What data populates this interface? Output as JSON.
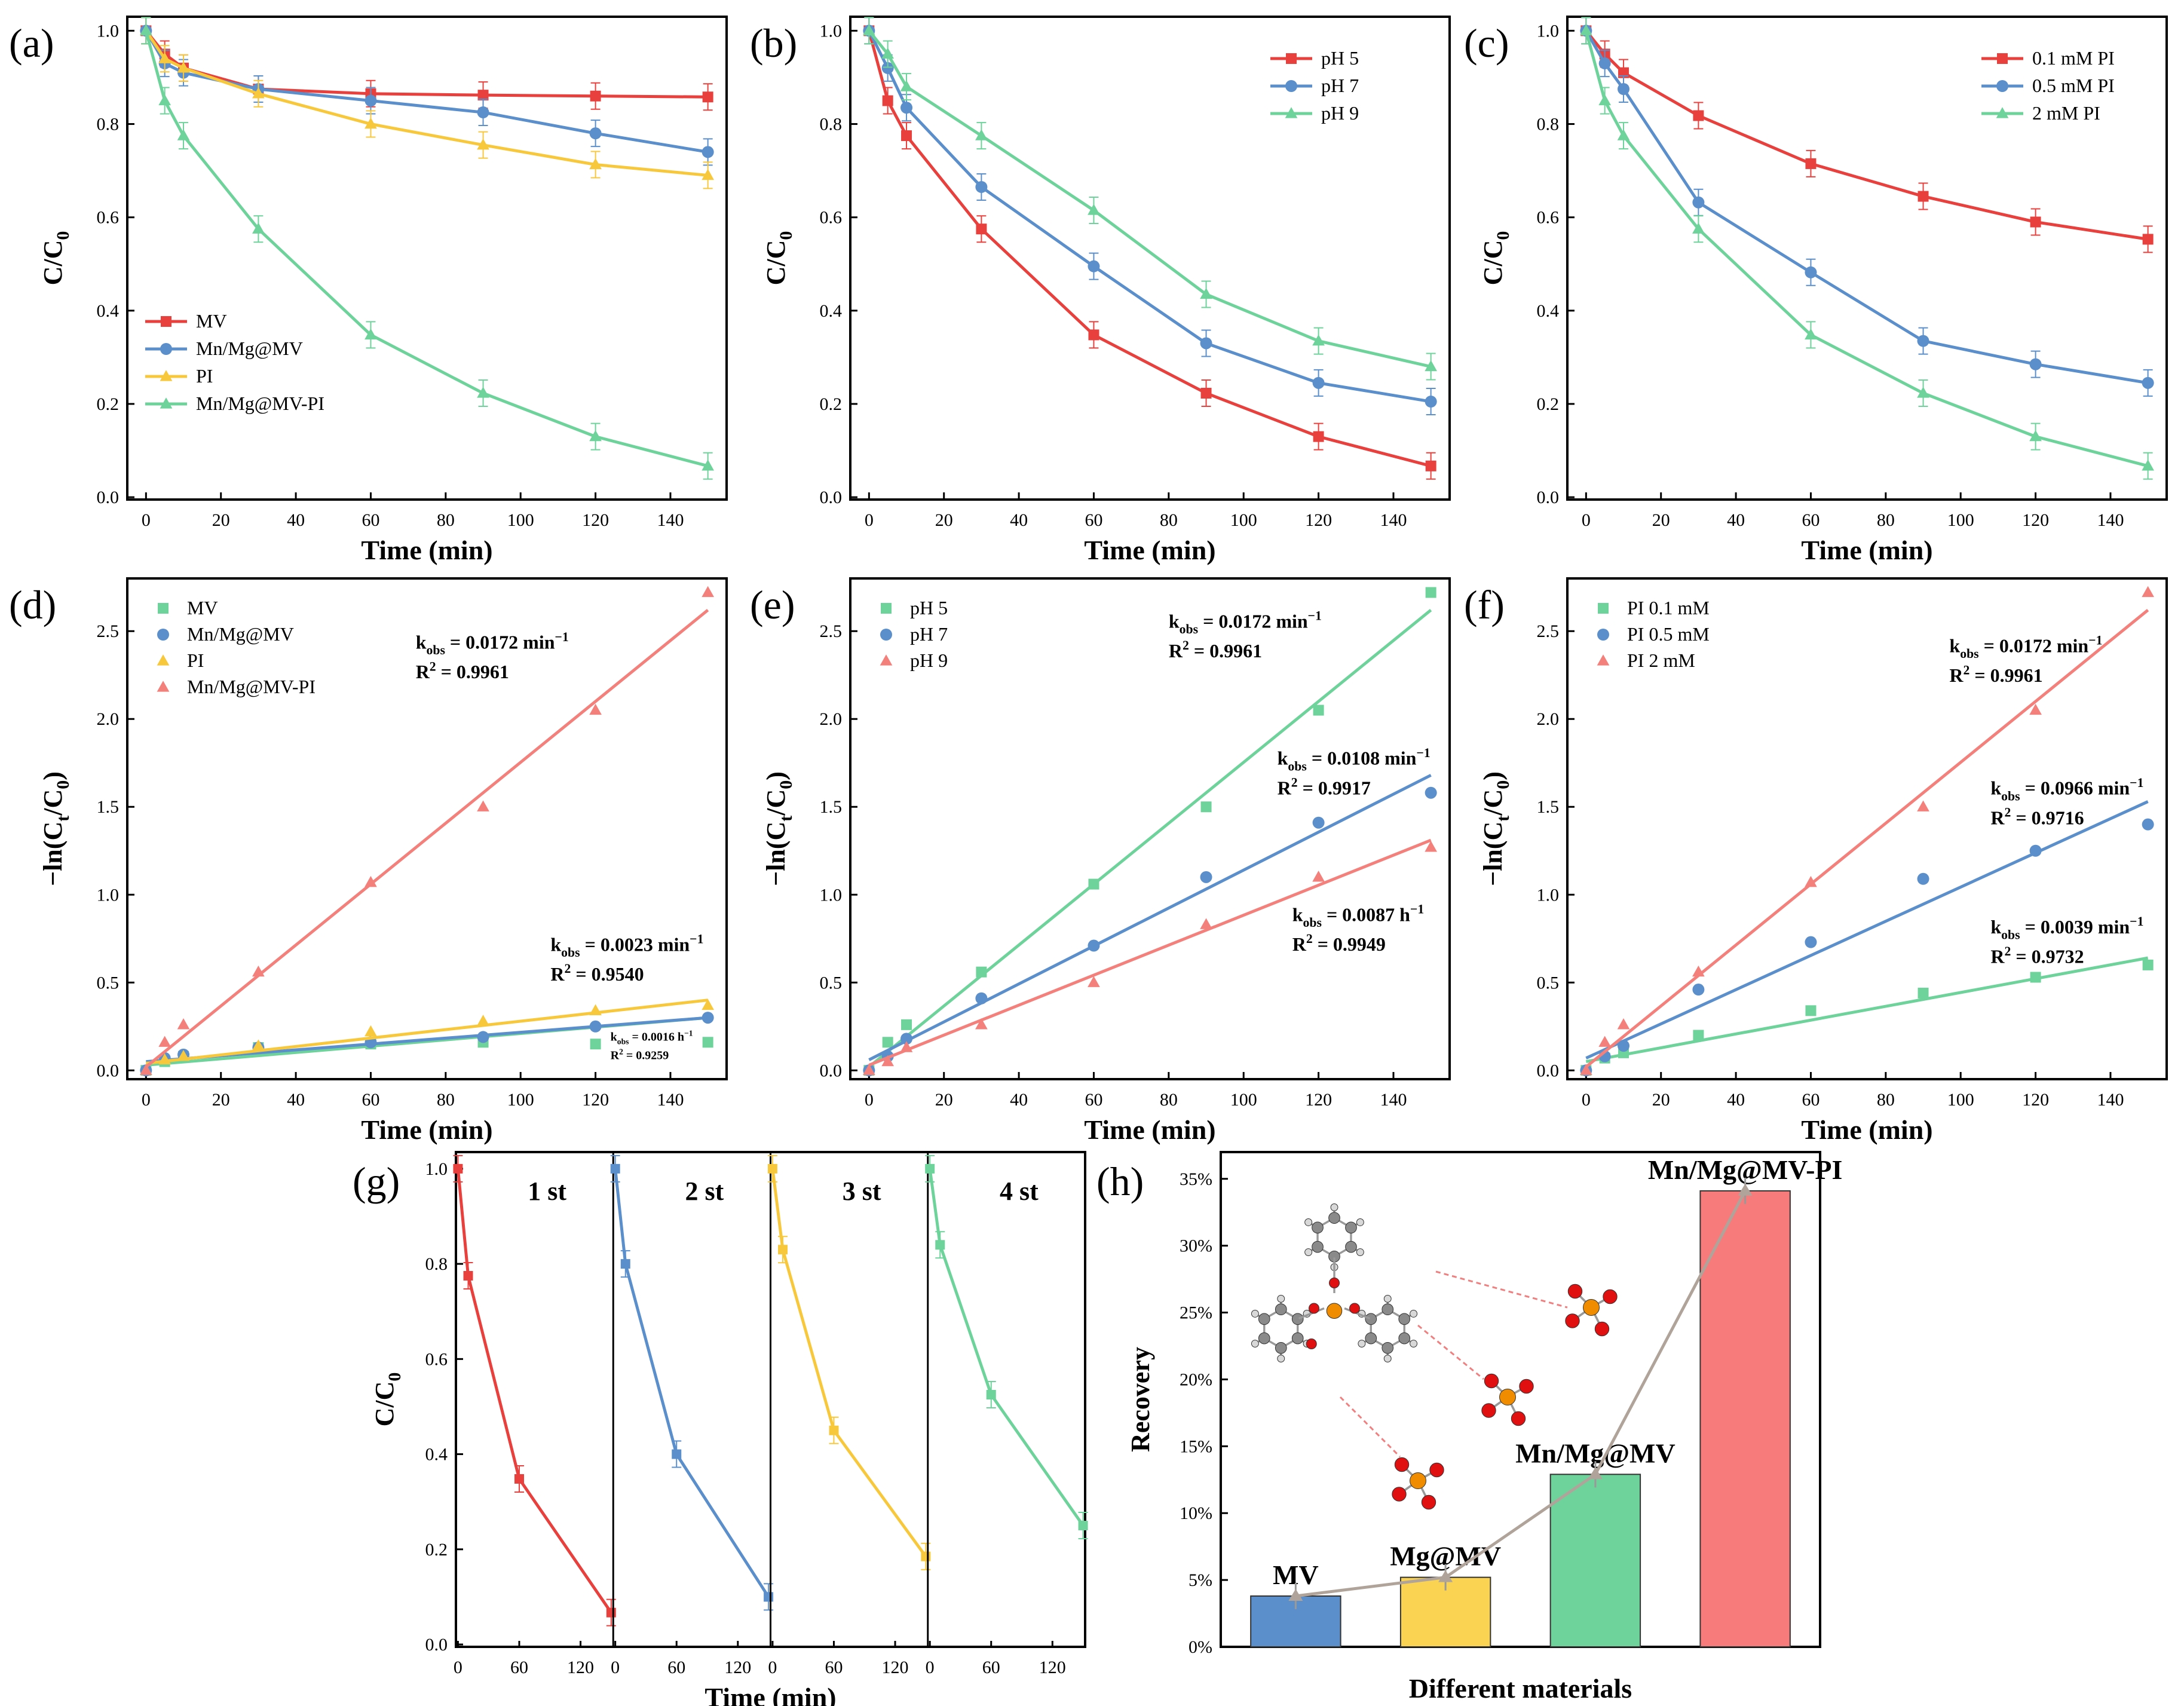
{
  "figure": {
    "panels": [
      {
        "id": "a",
        "label": "(a)",
        "type": "line",
        "xlabel": "Time (min)",
        "ylabel": "C/C",
        "ylabel_sub": "0",
        "xlim": [
          -5,
          155
        ],
        "ylim": [
          0,
          1.0
        ],
        "xticks": [
          0,
          20,
          40,
          60,
          80,
          100,
          120,
          140
        ],
        "yticks": [
          0.0,
          0.2,
          0.4,
          0.6,
          0.8,
          1.0
        ],
        "legend_pos": "bottom-left",
        "series": [
          {
            "name": "MV",
            "color": "#e8403d",
            "marker": "square",
            "x": [
              0,
              5,
              10,
              30,
              60,
              90,
              120,
              150
            ],
            "y": [
              1.0,
              0.95,
              0.92,
              0.875,
              0.865,
              0.862,
              0.86,
              0.858
            ]
          },
          {
            "name": "Mn/Mg@MV",
            "color": "#5b8fcb",
            "marker": "circle",
            "x": [
              0,
              5,
              10,
              30,
              60,
              90,
              120,
              150
            ],
            "y": [
              1.0,
              0.93,
              0.91,
              0.875,
              0.85,
              0.825,
              0.78,
              0.74
            ]
          },
          {
            "name": "PI",
            "color": "#f8c83c",
            "marker": "triangle",
            "x": [
              0,
              5,
              10,
              30,
              60,
              90,
              120,
              150
            ],
            "y": [
              1.0,
              0.94,
              0.92,
              0.865,
              0.8,
              0.755,
              0.713,
              0.69
            ]
          },
          {
            "name": "Mn/Mg@MV-PI",
            "color": "#6dd39a",
            "marker": "triangle",
            "x": [
              0,
              5,
              10,
              30,
              60,
              90,
              120,
              150
            ],
            "y": [
              1.0,
              0.85,
              0.775,
              0.575,
              0.348,
              0.223,
              0.13,
              0.067
            ]
          }
        ]
      },
      {
        "id": "b",
        "label": "(b)",
        "type": "line",
        "xlabel": "Time (min)",
        "ylabel": "C/C",
        "ylabel_sub": "0",
        "xlim": [
          -5,
          155
        ],
        "ylim": [
          0,
          1.0
        ],
        "xticks": [
          0,
          20,
          40,
          60,
          80,
          100,
          120,
          140
        ],
        "yticks": [
          0.0,
          0.2,
          0.4,
          0.6,
          0.8,
          1.0
        ],
        "legend_pos": "top-right",
        "series": [
          {
            "name": "pH 5",
            "color": "#e8403d",
            "marker": "square",
            "x": [
              0,
              5,
              10,
              30,
              60,
              90,
              120,
              150
            ],
            "y": [
              1.0,
              0.85,
              0.775,
              0.575,
              0.348,
              0.223,
              0.13,
              0.067
            ]
          },
          {
            "name": "pH 7",
            "color": "#5b8fcb",
            "marker": "circle",
            "x": [
              0,
              5,
              10,
              30,
              60,
              90,
              120,
              150
            ],
            "y": [
              1.0,
              0.92,
              0.835,
              0.665,
              0.495,
              0.33,
              0.245,
              0.205
            ]
          },
          {
            "name": "pH 9",
            "color": "#6dd39a",
            "marker": "triangle",
            "x": [
              0,
              5,
              10,
              30,
              60,
              90,
              120,
              150
            ],
            "y": [
              1.0,
              0.95,
              0.88,
              0.775,
              0.615,
              0.435,
              0.335,
              0.28
            ]
          }
        ]
      },
      {
        "id": "c",
        "label": "(c)",
        "type": "line",
        "xlabel": "Time (min)",
        "ylabel": "C/C",
        "ylabel_sub": "0",
        "xlim": [
          -5,
          155
        ],
        "ylim": [
          0,
          1.0
        ],
        "xticks": [
          0,
          20,
          40,
          60,
          80,
          100,
          120,
          140
        ],
        "yticks": [
          0.0,
          0.2,
          0.4,
          0.6,
          0.8,
          1.0
        ],
        "legend_pos": "top-right",
        "series": [
          {
            "name": "0.1 mM PI",
            "color": "#e8403d",
            "marker": "square",
            "x": [
              0,
              5,
              10,
              30,
              60,
              90,
              120,
              150
            ],
            "y": [
              1.0,
              0.95,
              0.91,
              0.818,
              0.715,
              0.645,
              0.59,
              0.553
            ]
          },
          {
            "name": "0.5 mM PI",
            "color": "#5b8fcb",
            "marker": "circle",
            "x": [
              0,
              5,
              10,
              30,
              60,
              90,
              120,
              150
            ],
            "y": [
              1.0,
              0.93,
              0.875,
              0.632,
              0.482,
              0.335,
              0.285,
              0.245
            ]
          },
          {
            "name": "2 mM PI",
            "color": "#6dd39a",
            "marker": "triangle",
            "x": [
              0,
              5,
              10,
              30,
              60,
              90,
              120,
              150
            ],
            "y": [
              1.0,
              0.85,
              0.775,
              0.575,
              0.348,
              0.223,
              0.13,
              0.067
            ]
          }
        ]
      },
      {
        "id": "d",
        "label": "(d)",
        "type": "scatter_fit",
        "xlabel": "Time (min)",
        "ylabel": "−ln(C",
        "ylabel_sub": "t",
        "ylabel_mid": "/C",
        "ylabel_sub2": "0",
        "ylabel_end": ")",
        "xlim": [
          -5,
          155
        ],
        "ylim": [
          -0.05,
          2.8
        ],
        "xticks": [
          0,
          20,
          40,
          60,
          80,
          100,
          120,
          140
        ],
        "yticks": [
          0.0,
          0.5,
          1.0,
          1.5,
          2.0,
          2.5
        ],
        "legend_pos": "top-left",
        "series": [
          {
            "name": "MV",
            "color": "#6dd39a",
            "marker": "square",
            "x": [
              0,
              5,
              10,
              30,
              60,
              90,
              120,
              150
            ],
            "y": [
              0,
              0.05,
              0.08,
              0.13,
              0.15,
              0.16,
              0.15,
              0.16
            ],
            "fit": [
              0.03,
              0.3
            ]
          },
          {
            "name": "Mn/Mg@MV",
            "color": "#5b8fcb",
            "marker": "circle",
            "x": [
              0,
              5,
              10,
              30,
              60,
              90,
              120,
              150
            ],
            "y": [
              0,
              0.07,
              0.09,
              0.13,
              0.16,
              0.19,
              0.25,
              0.3
            ],
            "fit": [
              0.05,
              0.3
            ]
          },
          {
            "name": "PI",
            "color": "#f8c83c",
            "marker": "triangle",
            "x": [
              0,
              5,
              10,
              30,
              60,
              90,
              120,
              150
            ],
            "y": [
              0,
              0.06,
              0.08,
              0.14,
              0.22,
              0.28,
              0.34,
              0.37
            ],
            "fit": [
              0.04,
              0.4
            ]
          },
          {
            "name": "Mn/Mg@MV-PI",
            "color": "#f4807c",
            "marker": "triangle",
            "x": [
              0,
              5,
              10,
              30,
              60,
              90,
              120,
              150
            ],
            "y": [
              0,
              0.16,
              0.26,
              0.56,
              1.07,
              1.5,
              2.05,
              2.72
            ],
            "fit": [
              0.02,
              2.62
            ]
          }
        ],
        "annotations": [
          {
            "k": "0.0172",
            "unit": "min",
            "r2": "0.9961",
            "x": 72,
            "y": 2.4,
            "size": "normal"
          },
          {
            "k": "0.0023",
            "unit": "min",
            "r2": "0.9540",
            "x": 108,
            "y": 0.68,
            "size": "normal"
          },
          {
            "k": "0.0016",
            "unit": "h",
            "r2": "0.9259",
            "x": 124,
            "y": 0.17,
            "size": "small"
          }
        ]
      },
      {
        "id": "e",
        "label": "(e)",
        "type": "scatter_fit",
        "xlabel": "Time (min)",
        "ylabel": "−ln(C",
        "ylabel_sub": "t",
        "ylabel_mid": "/C",
        "ylabel_sub2": "0",
        "ylabel_end": ")",
        "xlim": [
          -5,
          155
        ],
        "ylim": [
          -0.05,
          2.8
        ],
        "xticks": [
          0,
          20,
          40,
          60,
          80,
          100,
          120,
          140
        ],
        "yticks": [
          0.0,
          0.5,
          1.0,
          1.5,
          2.0,
          2.5
        ],
        "legend_pos": "top-left",
        "series": [
          {
            "name": "pH 5",
            "color": "#6dd39a",
            "marker": "square",
            "x": [
              0,
              5,
              10,
              30,
              60,
              90,
              120,
              150
            ],
            "y": [
              0,
              0.16,
              0.26,
              0.56,
              1.06,
              1.5,
              2.05,
              2.72
            ],
            "fit": [
              0.02,
              2.62
            ]
          },
          {
            "name": "pH 7",
            "color": "#5b8fcb",
            "marker": "circle",
            "x": [
              0,
              5,
              10,
              30,
              60,
              90,
              120,
              150
            ],
            "y": [
              0,
              0.08,
              0.18,
              0.41,
              0.71,
              1.1,
              1.41,
              1.58
            ],
            "fit": [
              0.06,
              1.68
            ]
          },
          {
            "name": "pH 9",
            "color": "#f4807c",
            "marker": "triangle",
            "x": [
              0,
              5,
              10,
              30,
              60,
              90,
              120,
              150
            ],
            "y": [
              0,
              0.05,
              0.13,
              0.26,
              0.5,
              0.83,
              1.1,
              1.27
            ],
            "fit": [
              0.03,
              1.31
            ]
          }
        ],
        "annotations": [
          {
            "k": "0.0172",
            "unit": "min",
            "r2": "0.9961",
            "x": 80,
            "y": 2.52,
            "size": "normal"
          },
          {
            "k": "0.0108",
            "unit": "min",
            "r2": "0.9917",
            "x": 109,
            "y": 1.74,
            "size": "normal"
          },
          {
            "k": "0.0087",
            "unit": "h",
            "r2": "0.9949",
            "x": 113,
            "y": 0.85,
            "size": "normal"
          }
        ]
      },
      {
        "id": "f",
        "label": "(f)",
        "type": "scatter_fit",
        "xlabel": "Time (min)",
        "ylabel": "−ln(C",
        "ylabel_sub": "t",
        "ylabel_mid": "/C",
        "ylabel_sub2": "0",
        "ylabel_end": ")",
        "xlim": [
          -5,
          155
        ],
        "ylim": [
          -0.05,
          2.8
        ],
        "xticks": [
          0,
          20,
          40,
          60,
          80,
          100,
          120,
          140
        ],
        "yticks": [
          0.0,
          0.5,
          1.0,
          1.5,
          2.0,
          2.5
        ],
        "legend_pos": "top-left",
        "series": [
          {
            "name": "PI 0.1 mM",
            "color": "#6dd39a",
            "marker": "square",
            "x": [
              0,
              5,
              10,
              30,
              60,
              90,
              120,
              150
            ],
            "y": [
              0,
              0.07,
              0.1,
              0.2,
              0.34,
              0.44,
              0.53,
              0.6
            ],
            "fit": [
              0.05,
              0.64
            ]
          },
          {
            "name": "PI 0.5 mM",
            "color": "#5b8fcb",
            "marker": "circle",
            "x": [
              0,
              5,
              10,
              30,
              60,
              90,
              120,
              150
            ],
            "y": [
              0,
              0.08,
              0.14,
              0.46,
              0.73,
              1.09,
              1.25,
              1.4
            ],
            "fit": [
              0.07,
              1.53
            ]
          },
          {
            "name": "PI 2 mM",
            "color": "#f4807c",
            "marker": "triangle",
            "x": [
              0,
              5,
              10,
              30,
              60,
              90,
              120,
              150
            ],
            "y": [
              0,
              0.16,
              0.26,
              0.56,
              1.07,
              1.5,
              2.05,
              2.72
            ],
            "fit": [
              0.02,
              2.62
            ]
          }
        ],
        "annotations": [
          {
            "k": "0.0172",
            "unit": "min",
            "r2": "0.9961",
            "x": 97,
            "y": 2.38,
            "size": "normal"
          },
          {
            "k": "0.0966",
            "unit": "min",
            "r2": "0.9716",
            "x": 108,
            "y": 1.57,
            "size": "normal"
          },
          {
            "k": "0.0039",
            "unit": "min",
            "r2": "0.9732",
            "x": 108,
            "y": 0.78,
            "size": "normal"
          }
        ]
      },
      {
        "id": "g",
        "label": "(g)",
        "type": "cycles",
        "xlabel": "Time (min)",
        "ylabel": "C/C",
        "ylabel_sub": "0",
        "ylim": [
          0,
          1.0
        ],
        "yticks": [
          0.0,
          0.2,
          0.4,
          0.6,
          0.8,
          1.0
        ],
        "xticks": [
          0,
          60,
          120
        ],
        "x_span": [
          -2,
          152
        ],
        "cycles": [
          {
            "name": "1 st",
            "color": "#e8403d",
            "marker": "square",
            "x": [
              0,
              10,
              60,
              150
            ],
            "y": [
              1.0,
              0.775,
              0.348,
              0.067
            ]
          },
          {
            "name": "2 st",
            "color": "#5b8fcb",
            "marker": "square",
            "x": [
              0,
              10,
              60,
              150
            ],
            "y": [
              1.0,
              0.8,
              0.4,
              0.1
            ]
          },
          {
            "name": "3 st",
            "color": "#f8c83c",
            "marker": "square",
            "x": [
              0,
              10,
              60,
              150
            ],
            "y": [
              1.0,
              0.83,
              0.45,
              0.185
            ]
          },
          {
            "name": "4 st",
            "color": "#6dd39a",
            "marker": "square",
            "x": [
              0,
              10,
              60,
              150
            ],
            "y": [
              1.0,
              0.84,
              0.525,
              0.25
            ]
          }
        ]
      },
      {
        "id": "h",
        "label": "(h)",
        "type": "bar",
        "xlabel": "Different materials",
        "ylabel": "Recovery",
        "ylim": [
          0,
          37
        ],
        "yticks": [
          0,
          5,
          10,
          15,
          20,
          25,
          30,
          35
        ],
        "ytick_suffix": "%",
        "categories": [
          "MV",
          "Mg@MV",
          "Mn/Mg@MV",
          "Mn/Mg@MV-PI"
        ],
        "values": [
          3.8,
          5.2,
          12.9,
          34.1
        ],
        "colors": [
          "#5b8fcb",
          "#f9d351",
          "#6dd39a",
          "#f87b7b"
        ]
      }
    ]
  }
}
